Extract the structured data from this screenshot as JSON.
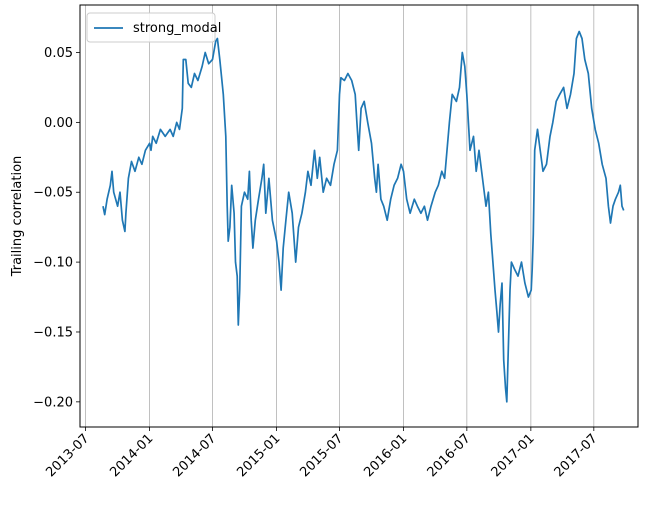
{
  "chart_data": {
    "type": "line",
    "title": "",
    "xlabel": "",
    "ylabel": "Trailing correlation",
    "xlim": [
      "2013-06-15",
      "2017-11-05"
    ],
    "ylim": [
      -0.218,
      0.084
    ],
    "grid": "vertical-at-x-ticks",
    "legend": "top-left",
    "x_ticks": [
      "2013-07",
      "2014-01",
      "2014-07",
      "2015-01",
      "2015-07",
      "2016-01",
      "2016-07",
      "2017-01",
      "2017-07"
    ],
    "y_ticks": [
      0.05,
      0.0,
      -0.05,
      -0.1,
      -0.15,
      -0.2
    ],
    "y_tick_labels": [
      "0.05",
      "0.00",
      "−0.05",
      "−0.10",
      "−0.15",
      "−0.20"
    ],
    "series": [
      {
        "name": "strong_modal",
        "color": "#1f77b4",
        "points": [
          [
            "2013-08-20",
            -0.06
          ],
          [
            "2013-08-25",
            -0.066
          ],
          [
            "2013-09-01",
            -0.055
          ],
          [
            "2013-09-10",
            -0.045
          ],
          [
            "2013-09-15",
            -0.035
          ],
          [
            "2013-09-20",
            -0.05
          ],
          [
            "2013-10-01",
            -0.06
          ],
          [
            "2013-10-08",
            -0.05
          ],
          [
            "2013-10-15",
            -0.07
          ],
          [
            "2013-10-22",
            -0.078
          ],
          [
            "2013-10-25",
            -0.065
          ],
          [
            "2013-11-01",
            -0.04
          ],
          [
            "2013-11-10",
            -0.028
          ],
          [
            "2013-11-20",
            -0.035
          ],
          [
            "2013-12-01",
            -0.025
          ],
          [
            "2013-12-10",
            -0.03
          ],
          [
            "2013-12-20",
            -0.02
          ],
          [
            "2014-01-01",
            -0.015
          ],
          [
            "2014-01-05",
            -0.02
          ],
          [
            "2014-01-10",
            -0.01
          ],
          [
            "2014-01-20",
            -0.015
          ],
          [
            "2014-02-01",
            -0.005
          ],
          [
            "2014-02-15",
            -0.01
          ],
          [
            "2014-03-01",
            -0.005
          ],
          [
            "2014-03-10",
            -0.01
          ],
          [
            "2014-03-20",
            0.0
          ],
          [
            "2014-03-28",
            -0.005
          ],
          [
            "2014-04-05",
            0.01
          ],
          [
            "2014-04-08",
            0.045
          ],
          [
            "2014-04-15",
            0.045
          ],
          [
            "2014-04-22",
            0.028
          ],
          [
            "2014-05-01",
            0.025
          ],
          [
            "2014-05-10",
            0.035
          ],
          [
            "2014-05-20",
            0.03
          ],
          [
            "2014-06-01",
            0.04
          ],
          [
            "2014-06-10",
            0.05
          ],
          [
            "2014-06-20",
            0.042
          ],
          [
            "2014-07-01",
            0.045
          ],
          [
            "2014-07-10",
            0.058
          ],
          [
            "2014-07-15",
            0.06
          ],
          [
            "2014-07-22",
            0.045
          ],
          [
            "2014-08-01",
            0.02
          ],
          [
            "2014-08-08",
            -0.01
          ],
          [
            "2014-08-12",
            -0.06
          ],
          [
            "2014-08-15",
            -0.085
          ],
          [
            "2014-08-20",
            -0.075
          ],
          [
            "2014-08-25",
            -0.045
          ],
          [
            "2014-09-01",
            -0.065
          ],
          [
            "2014-09-05",
            -0.1
          ],
          [
            "2014-09-10",
            -0.11
          ],
          [
            "2014-09-13",
            -0.145
          ],
          [
            "2014-09-17",
            -0.12
          ],
          [
            "2014-09-22",
            -0.06
          ],
          [
            "2014-10-01",
            -0.05
          ],
          [
            "2014-10-10",
            -0.055
          ],
          [
            "2014-10-15",
            -0.035
          ],
          [
            "2014-10-20",
            -0.07
          ],
          [
            "2014-10-25",
            -0.09
          ],
          [
            "2014-11-01",
            -0.07
          ],
          [
            "2014-11-10",
            -0.055
          ],
          [
            "2014-11-20",
            -0.04
          ],
          [
            "2014-11-25",
            -0.03
          ],
          [
            "2014-12-01",
            -0.065
          ],
          [
            "2014-12-10",
            -0.04
          ],
          [
            "2014-12-20",
            -0.07
          ],
          [
            "2015-01-01",
            -0.085
          ],
          [
            "2015-01-08",
            -0.1
          ],
          [
            "2015-01-14",
            -0.12
          ],
          [
            "2015-01-20",
            -0.09
          ],
          [
            "2015-01-28",
            -0.07
          ],
          [
            "2015-02-05",
            -0.05
          ],
          [
            "2015-02-15",
            -0.065
          ],
          [
            "2015-02-25",
            -0.1
          ],
          [
            "2015-03-05",
            -0.075
          ],
          [
            "2015-03-15",
            -0.065
          ],
          [
            "2015-03-25",
            -0.05
          ],
          [
            "2015-04-01",
            -0.035
          ],
          [
            "2015-04-10",
            -0.045
          ],
          [
            "2015-04-20",
            -0.02
          ],
          [
            "2015-04-28",
            -0.04
          ],
          [
            "2015-05-05",
            -0.025
          ],
          [
            "2015-05-15",
            -0.05
          ],
          [
            "2015-05-25",
            -0.04
          ],
          [
            "2015-06-05",
            -0.045
          ],
          [
            "2015-06-15",
            -0.03
          ],
          [
            "2015-06-25",
            -0.02
          ],
          [
            "2015-07-01",
            0.02
          ],
          [
            "2015-07-05",
            0.032
          ],
          [
            "2015-07-15",
            0.03
          ],
          [
            "2015-07-25",
            0.035
          ],
          [
            "2015-08-05",
            0.03
          ],
          [
            "2015-08-15",
            0.02
          ],
          [
            "2015-08-20",
            0.0
          ],
          [
            "2015-08-25",
            -0.02
          ],
          [
            "2015-09-01",
            0.01
          ],
          [
            "2015-09-10",
            0.015
          ],
          [
            "2015-09-20",
            0.0
          ],
          [
            "2015-10-01",
            -0.015
          ],
          [
            "2015-10-10",
            -0.04
          ],
          [
            "2015-10-15",
            -0.05
          ],
          [
            "2015-10-20",
            -0.03
          ],
          [
            "2015-10-28",
            -0.055
          ],
          [
            "2015-11-05",
            -0.06
          ],
          [
            "2015-11-15",
            -0.07
          ],
          [
            "2015-11-25",
            -0.055
          ],
          [
            "2015-12-05",
            -0.045
          ],
          [
            "2015-12-15",
            -0.04
          ],
          [
            "2015-12-25",
            -0.03
          ],
          [
            "2016-01-01",
            -0.035
          ],
          [
            "2016-01-10",
            -0.055
          ],
          [
            "2016-01-20",
            -0.065
          ],
          [
            "2016-02-01",
            -0.055
          ],
          [
            "2016-02-10",
            -0.06
          ],
          [
            "2016-02-20",
            -0.065
          ],
          [
            "2016-03-01",
            -0.06
          ],
          [
            "2016-03-10",
            -0.07
          ],
          [
            "2016-03-20",
            -0.06
          ],
          [
            "2016-04-01",
            -0.05
          ],
          [
            "2016-04-10",
            -0.045
          ],
          [
            "2016-04-20",
            -0.035
          ],
          [
            "2016-04-28",
            -0.04
          ],
          [
            "2016-05-05",
            -0.02
          ],
          [
            "2016-05-12",
            0.0
          ],
          [
            "2016-05-20",
            0.02
          ],
          [
            "2016-06-01",
            0.015
          ],
          [
            "2016-06-10",
            0.025
          ],
          [
            "2016-06-18",
            0.05
          ],
          [
            "2016-06-25",
            0.04
          ],
          [
            "2016-07-01",
            0.02
          ],
          [
            "2016-07-10",
            -0.02
          ],
          [
            "2016-07-20",
            -0.01
          ],
          [
            "2016-07-28",
            -0.035
          ],
          [
            "2016-08-05",
            -0.02
          ],
          [
            "2016-08-15",
            -0.04
          ],
          [
            "2016-08-25",
            -0.06
          ],
          [
            "2016-09-01",
            -0.05
          ],
          [
            "2016-09-08",
            -0.08
          ],
          [
            "2016-09-14",
            -0.1
          ],
          [
            "2016-09-20",
            -0.12
          ],
          [
            "2016-09-25",
            -0.135
          ],
          [
            "2016-09-30",
            -0.15
          ],
          [
            "2016-10-05",
            -0.13
          ],
          [
            "2016-10-10",
            -0.115
          ],
          [
            "2016-10-15",
            -0.17
          ],
          [
            "2016-10-20",
            -0.19
          ],
          [
            "2016-10-24",
            -0.2
          ],
          [
            "2016-10-28",
            -0.165
          ],
          [
            "2016-11-02",
            -0.12
          ],
          [
            "2016-11-06",
            -0.1
          ],
          [
            "2016-11-15",
            -0.105
          ],
          [
            "2016-11-25",
            -0.11
          ],
          [
            "2016-12-05",
            -0.1
          ],
          [
            "2016-12-15",
            -0.115
          ],
          [
            "2016-12-25",
            -0.125
          ],
          [
            "2017-01-02",
            -0.12
          ],
          [
            "2017-01-05",
            -0.105
          ],
          [
            "2017-01-08",
            -0.08
          ],
          [
            "2017-01-12",
            -0.02
          ],
          [
            "2017-01-20",
            -0.005
          ],
          [
            "2017-01-28",
            -0.02
          ],
          [
            "2017-02-05",
            -0.035
          ],
          [
            "2017-02-15",
            -0.03
          ],
          [
            "2017-02-25",
            -0.01
          ],
          [
            "2017-03-05",
            0.0
          ],
          [
            "2017-03-15",
            0.015
          ],
          [
            "2017-03-25",
            0.02
          ],
          [
            "2017-04-05",
            0.025
          ],
          [
            "2017-04-15",
            0.01
          ],
          [
            "2017-04-25",
            0.02
          ],
          [
            "2017-05-05",
            0.035
          ],
          [
            "2017-05-12",
            0.06
          ],
          [
            "2017-05-20",
            0.065
          ],
          [
            "2017-05-28",
            0.06
          ],
          [
            "2017-06-05",
            0.045
          ],
          [
            "2017-06-15",
            0.035
          ],
          [
            "2017-06-25",
            0.01
          ],
          [
            "2017-07-05",
            -0.005
          ],
          [
            "2017-07-15",
            -0.015
          ],
          [
            "2017-07-25",
            -0.03
          ],
          [
            "2017-08-05",
            -0.04
          ],
          [
            "2017-08-12",
            -0.06
          ],
          [
            "2017-08-18",
            -0.072
          ],
          [
            "2017-08-25",
            -0.06
          ],
          [
            "2017-09-01",
            -0.055
          ],
          [
            "2017-09-10",
            -0.05
          ],
          [
            "2017-09-15",
            -0.045
          ],
          [
            "2017-09-20",
            -0.06
          ],
          [
            "2017-09-25",
            -0.063
          ]
        ]
      }
    ]
  }
}
